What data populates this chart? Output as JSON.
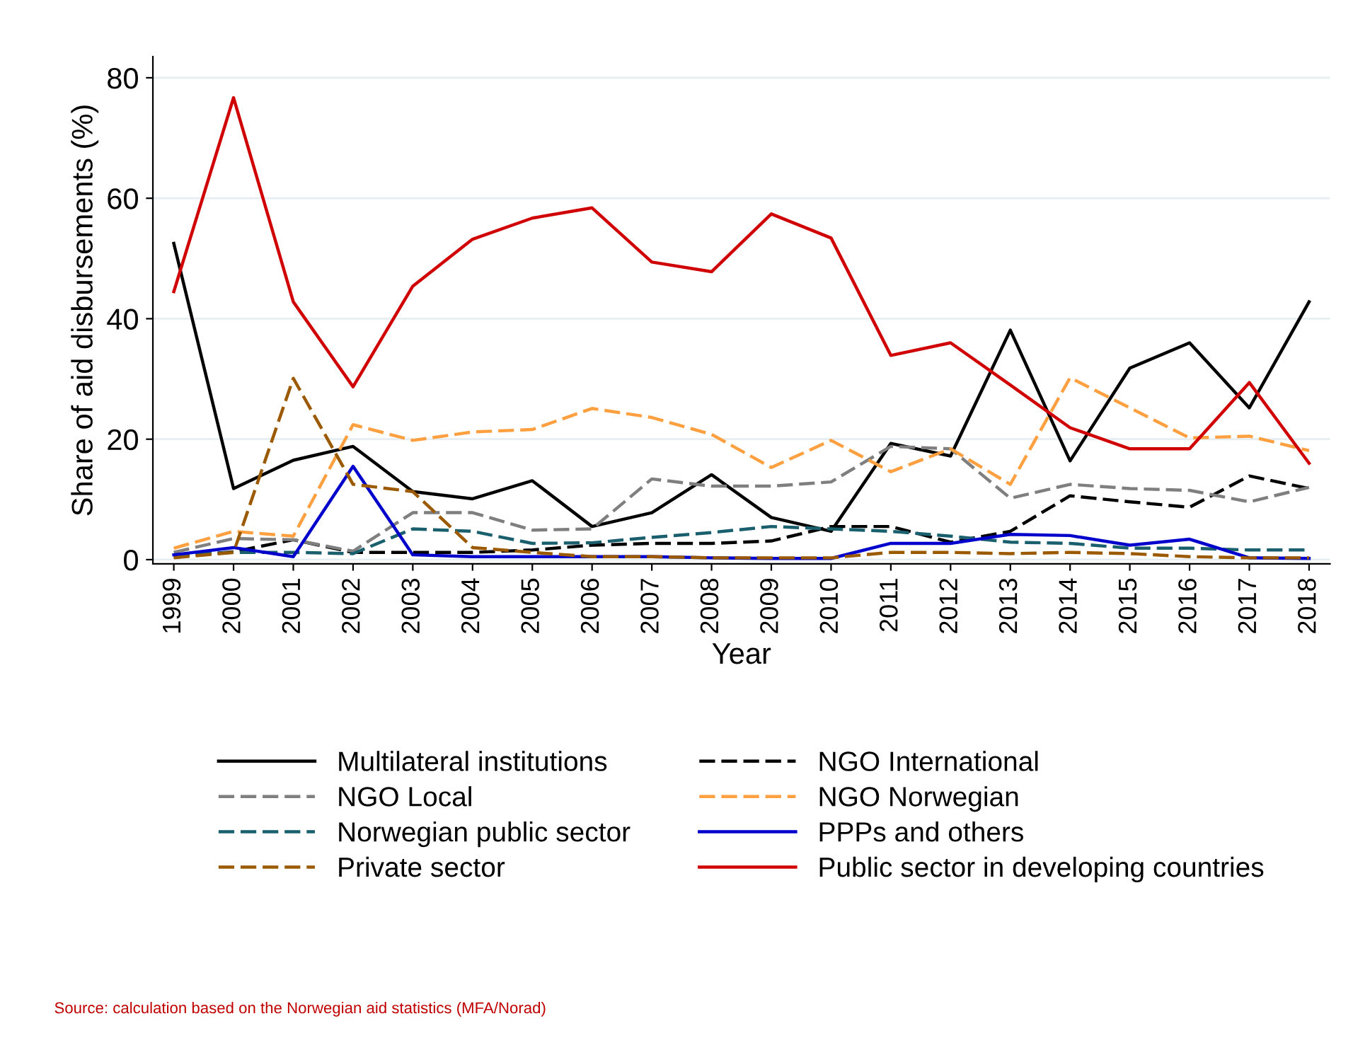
{
  "chart_data": {
    "type": "line",
    "xlabel": "Year",
    "ylabel": "Share of aid disbursements (%)",
    "x": [
      1999,
      2000,
      2001,
      2002,
      2003,
      2004,
      2005,
      2006,
      2007,
      2008,
      2009,
      2010,
      2011,
      2012,
      2013,
      2014,
      2015,
      2016,
      2017,
      2018
    ],
    "xlim": [
      1998.65,
      2018.35
    ],
    "xticks": [
      1999,
      2000,
      2001,
      2002,
      2003,
      2004,
      2005,
      2006,
      2007,
      2008,
      2009,
      2010,
      2011,
      2012,
      2013,
      2014,
      2015,
      2016,
      2017,
      2018
    ],
    "ylim": [
      -0.7,
      83.5
    ],
    "yticks": [
      0,
      20,
      40,
      60,
      80
    ],
    "grid": "y",
    "legend": "bottom",
    "marker": "none",
    "series": [
      {
        "name": "Multilateral institutions",
        "color": "#000000",
        "line_style": "solid",
        "values": [
          52.5,
          11.8,
          16.5,
          18.8,
          11.3,
          10.1,
          13.1,
          5.5,
          7.8,
          14.1,
          7.0,
          4.7,
          19.3,
          17.2,
          38.1,
          16.4,
          31.8,
          36.0,
          25.2,
          42.8
        ]
      },
      {
        "name": "NGO International",
        "color": "#000000",
        "line_style": "dashed",
        "values": [
          0.5,
          1.3,
          3.3,
          1.2,
          1.2,
          1.2,
          1.6,
          2.4,
          2.7,
          2.7,
          3.1,
          5.5,
          5.5,
          2.9,
          4.7,
          10.6,
          9.6,
          8.7,
          13.9,
          11.8
        ]
      },
      {
        "name": "NGO Local",
        "color": "#7f7f7f",
        "line_style": "dashed",
        "values": [
          1.2,
          3.5,
          3.3,
          1.4,
          7.8,
          7.8,
          4.9,
          5.1,
          13.4,
          12.2,
          12.2,
          12.9,
          18.8,
          18.4,
          10.2,
          12.5,
          11.8,
          11.5,
          9.6,
          12.0
        ]
      },
      {
        "name": "NGO Norwegian",
        "color": "#ffa040",
        "line_style": "dashed",
        "values": [
          1.9,
          4.7,
          3.9,
          22.4,
          19.8,
          21.2,
          21.6,
          25.1,
          23.6,
          20.8,
          15.3,
          19.8,
          14.6,
          18.4,
          12.5,
          30.2,
          25.2,
          20.2,
          20.5,
          18.1
        ]
      },
      {
        "name": "Norwegian public sector",
        "color": "#1a5f6e",
        "line_style": "dashed",
        "values": [
          0.8,
          1.2,
          1.2,
          1.0,
          5.1,
          4.7,
          2.7,
          2.8,
          3.7,
          4.5,
          5.5,
          5.1,
          4.7,
          3.9,
          2.9,
          2.7,
          1.9,
          1.9,
          1.6,
          1.6
        ]
      },
      {
        "name": "PPPs and others",
        "color": "#0000cc",
        "line_style": "solid",
        "values": [
          0.8,
          2.0,
          0.5,
          15.5,
          0.8,
          0.5,
          0.5,
          0.5,
          0.5,
          0.3,
          0.2,
          0.2,
          2.7,
          2.7,
          4.2,
          4.0,
          2.4,
          3.4,
          0.3,
          0.2
        ]
      },
      {
        "name": "Private sector",
        "color": "#9c5a00",
        "line_style": "dashed",
        "values": [
          0.3,
          1.2,
          30.1,
          12.5,
          11.3,
          2.0,
          1.2,
          0.5,
          0.5,
          0.3,
          0.3,
          0.3,
          1.2,
          1.2,
          1.0,
          1.2,
          1.0,
          0.5,
          0.3,
          0.3
        ]
      },
      {
        "name": "Public sector in developing countries",
        "color": "#d00000",
        "line_style": "solid",
        "values": [
          44.5,
          76.7,
          42.8,
          28.7,
          45.4,
          53.2,
          56.7,
          58.4,
          49.4,
          47.8,
          57.4,
          53.4,
          33.9,
          36.0,
          29.0,
          21.9,
          18.4,
          18.4,
          29.4,
          16.0
        ]
      }
    ],
    "annotations": [
      "Source: calculation based on the Norwegian aid statistics (MFA/Norad)"
    ]
  }
}
